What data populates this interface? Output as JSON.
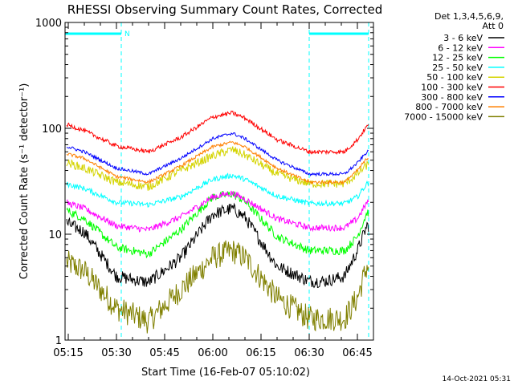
{
  "chart_data": {
    "type": "line",
    "title": "RHESSI Observing Summary Count Rates, Corrected",
    "xlabel": "Start Time (16-Feb-07 05:10:02)",
    "ylabel": "Corrected Count Rate (s⁻¹ detector⁻¹)",
    "y_scale": "log",
    "ylim": [
      1,
      1000
    ],
    "xlim_minutes": [
      4,
      100
    ],
    "x_ticks": [
      "05:15",
      "05:30",
      "05:45",
      "06:00",
      "06:15",
      "06:30",
      "06:45"
    ],
    "x_tick_minutes": [
      5,
      20,
      35,
      50,
      65,
      80,
      95
    ],
    "y_ticks": [
      "1",
      "10",
      "100",
      "1000"
    ],
    "y_tick_values": [
      1,
      10,
      100,
      1000
    ],
    "grid": false,
    "legend_placement": "right",
    "legend_header": [
      "Det 1,3,4,5,6,9,",
      "Att 0"
    ],
    "timestamp": "14-Oct-2021 05:31",
    "flag_label": "N",
    "night_intervals": [
      [
        4,
        21.5
      ],
      [
        80,
        98.5
      ]
    ],
    "series": [
      {
        "name": "3 - 6 keV",
        "color": "#000000",
        "noise": 0.06,
        "x": [
          4,
          10,
          20,
          30,
          40,
          50,
          56,
          60,
          70,
          80,
          85,
          91,
          95,
          98
        ],
        "values": [
          13,
          10.5,
          4.0,
          3.5,
          6.0,
          15.5,
          17.5,
          14.5,
          5.0,
          3.6,
          3.6,
          4.0,
          7.0,
          12
        ]
      },
      {
        "name": "6 - 12 keV",
        "color": "#ff00ff",
        "noise": 0.03,
        "x": [
          4,
          10,
          20,
          30,
          40,
          50,
          56,
          60,
          70,
          80,
          91,
          95,
          98
        ],
        "values": [
          20,
          17.5,
          12.0,
          11.0,
          14.5,
          22.5,
          24.5,
          21.5,
          14.0,
          11.5,
          11.5,
          14.0,
          20.0
        ]
      },
      {
        "name": "12 - 25 keV",
        "color": "#00ff00",
        "noise": 0.04,
        "x": [
          4,
          10,
          20,
          30,
          40,
          50,
          56,
          60,
          70,
          80,
          91,
          95,
          98
        ],
        "values": [
          17,
          14.0,
          7.5,
          6.5,
          11.0,
          22.5,
          24.0,
          20.5,
          9.5,
          7.0,
          7.0,
          9.5,
          16.0
        ]
      },
      {
        "name": "25 - 50 keV",
        "color": "#00ffff",
        "noise": 0.025,
        "x": [
          4,
          10,
          20,
          30,
          40,
          50,
          56,
          60,
          70,
          80,
          91,
          95,
          98
        ],
        "values": [
          30,
          27.0,
          20.0,
          19.0,
          22.5,
          33.0,
          36.0,
          33.0,
          23.0,
          19.5,
          19.5,
          22.5,
          30.0
        ]
      },
      {
        "name": "50 - 100 keV",
        "color": "#d4d400",
        "noise": 0.04,
        "x": [
          4,
          10,
          20,
          30,
          40,
          50,
          56,
          60,
          70,
          80,
          91,
          95,
          98
        ],
        "values": [
          48,
          42.0,
          31.0,
          28.0,
          40.0,
          55.0,
          63.0,
          56.0,
          37.0,
          30.0,
          30.0,
          37.0,
          45.0
        ]
      },
      {
        "name": "100 - 300 keV",
        "color": "#ff0000",
        "noise": 0.02,
        "x": [
          4,
          10,
          20,
          30,
          40,
          50,
          56,
          60,
          70,
          80,
          91,
          95,
          98
        ],
        "values": [
          110,
          95.0,
          68.0,
          60.0,
          82.0,
          128.0,
          140.0,
          125.0,
          78.0,
          60.0,
          60.0,
          78.0,
          105.0
        ]
      },
      {
        "name": "300 - 800 keV",
        "color": "#0000ff",
        "noise": 0.015,
        "x": [
          4,
          10,
          20,
          30,
          40,
          50,
          56,
          60,
          70,
          80,
          91,
          95,
          98
        ],
        "values": [
          68,
          60.0,
          42.0,
          37.0,
          52.0,
          80.0,
          90.0,
          80.0,
          50.0,
          37.0,
          37.0,
          47.0,
          60.0
        ]
      },
      {
        "name": "800 - 7000 keV",
        "color": "#ff8000",
        "noise": 0.015,
        "x": [
          4,
          10,
          20,
          30,
          40,
          50,
          56,
          60,
          70,
          80,
          91,
          95,
          98
        ],
        "values": [
          58,
          52.0,
          35.0,
          31.0,
          44.0,
          67.0,
          74.0,
          67.0,
          42.0,
          31.0,
          31.0,
          40.0,
          52.0
        ]
      },
      {
        "name": "7000 - 15000 keV",
        "color": "#808000",
        "noise": 0.12,
        "x": [
          4,
          10,
          20,
          30,
          40,
          50,
          56,
          60,
          70,
          80,
          91,
          95,
          98
        ],
        "values": [
          5.5,
          4.5,
          2.0,
          1.5,
          3.0,
          6.0,
          7.0,
          6.0,
          2.5,
          1.6,
          1.6,
          2.5,
          5.0
        ]
      }
    ]
  }
}
